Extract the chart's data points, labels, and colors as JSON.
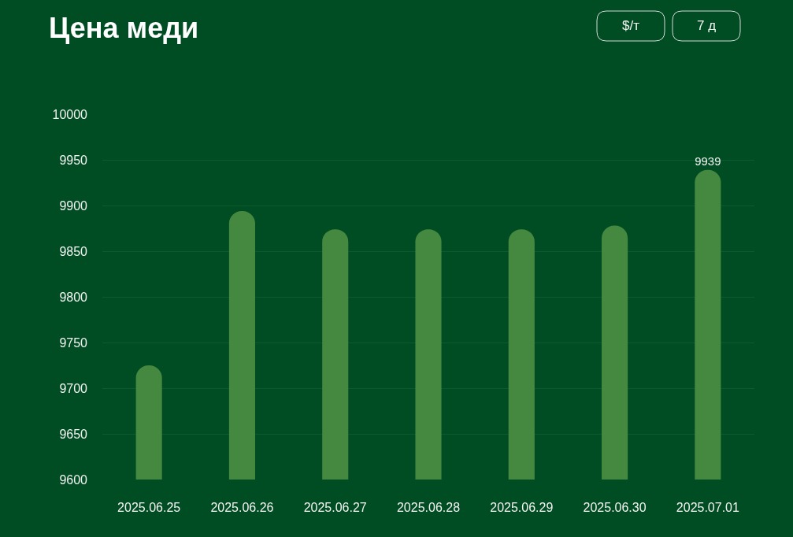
{
  "chart_data": {
    "type": "bar",
    "title": "Цена меди",
    "annotations": [
      "$/т",
      "7 д"
    ],
    "categories": [
      "2025.06.25",
      "2025.06.26",
      "2025.06.27",
      "2025.06.28",
      "2025.06.29",
      "2025.06.30",
      "2025.07.01"
    ],
    "values": [
      9725,
      9894,
      9874,
      9874,
      9874,
      9878,
      9939
    ],
    "value_labels": [
      null,
      null,
      null,
      null,
      null,
      null,
      "9939"
    ],
    "color": "#45883f",
    "ylim": [
      9600,
      10000
    ],
    "yticks": [
      9600,
      9650,
      9700,
      9750,
      9800,
      9850,
      9900,
      9950,
      10000
    ],
    "grid": "y"
  }
}
